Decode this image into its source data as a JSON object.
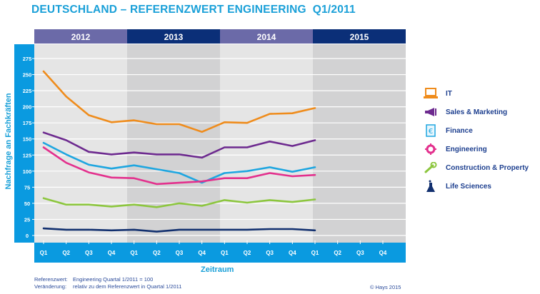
{
  "title": "DEUTSCHLAND – REFERENZWERT ENGINEERING  Q1/2011",
  "colors": {
    "axis_band": "#0a9ae0",
    "year_light": "#6b6aa8",
    "year_dark": "#0b2f78",
    "plot_light": "#e5e5e5",
    "plot_dark": "#d2d2d3",
    "gridline": "#ffffff",
    "title": "#1aa0d8",
    "legend_text": "#1d3f8f"
  },
  "chart_data": {
    "type": "line",
    "title": "DEUTSCHLAND – REFERENZWERT ENGINEERING  Q1/2011",
    "xlabel": "Zeitraum",
    "ylabel": "Nachfrage an Fachkräften",
    "ylim": [
      0,
      275
    ],
    "yticks": [
      0,
      25,
      50,
      75,
      100,
      125,
      150,
      175,
      200,
      225,
      250,
      275
    ],
    "grid": true,
    "legend_position": "right",
    "years": [
      "2012",
      "2013",
      "2014",
      "2015"
    ],
    "x": [
      "Q1",
      "Q2",
      "Q3",
      "Q4",
      "Q1",
      "Q2",
      "Q3",
      "Q4",
      "Q1",
      "Q2",
      "Q3",
      "Q4",
      "Q1",
      "Q2",
      "Q3",
      "Q4"
    ],
    "series": [
      {
        "name": "IT",
        "color": "#ef8c1c",
        "icon": "laptop-icon",
        "values": [
          255,
          216,
          187,
          176,
          179,
          173,
          173,
          161,
          176,
          175,
          189,
          190,
          198
        ]
      },
      {
        "name": "Sales & Marketing",
        "color": "#6d2a8f",
        "icon": "megaphone-icon",
        "values": [
          160,
          148,
          130,
          126,
          129,
          126,
          126,
          121,
          137,
          137,
          146,
          139,
          148
        ]
      },
      {
        "name": "Finance",
        "color": "#1ea6e0",
        "icon": "euro-document-icon",
        "values": [
          144,
          126,
          110,
          104,
          109,
          103,
          97,
          82,
          97,
          100,
          106,
          99,
          106
        ]
      },
      {
        "name": "Engineering",
        "color": "#e3308d",
        "icon": "gear-icon",
        "values": [
          137,
          113,
          98,
          90,
          89,
          80,
          82,
          84,
          89,
          89,
          97,
          92,
          94
        ]
      },
      {
        "name": "Construction & Property",
        "color": "#8cc63e",
        "icon": "wrench-icon",
        "values": [
          58,
          48,
          48,
          45,
          48,
          44,
          50,
          46,
          55,
          51,
          55,
          52,
          56
        ]
      },
      {
        "name": "Life Sciences",
        "color": "#12306f",
        "icon": "flask-icon",
        "values": [
          11,
          9,
          9,
          8,
          9,
          6,
          9,
          9,
          9,
          9,
          10,
          10,
          8
        ]
      }
    ]
  },
  "footnote": {
    "rows": [
      {
        "key": "Referenzwert:",
        "value": "Engineering Quartal 1/2011 = 100"
      },
      {
        "key": "Veränderung:",
        "value": "relativ zu dem Referenzwert in Quartal 1/2011"
      }
    ],
    "copyright": "© Hays 2015"
  }
}
